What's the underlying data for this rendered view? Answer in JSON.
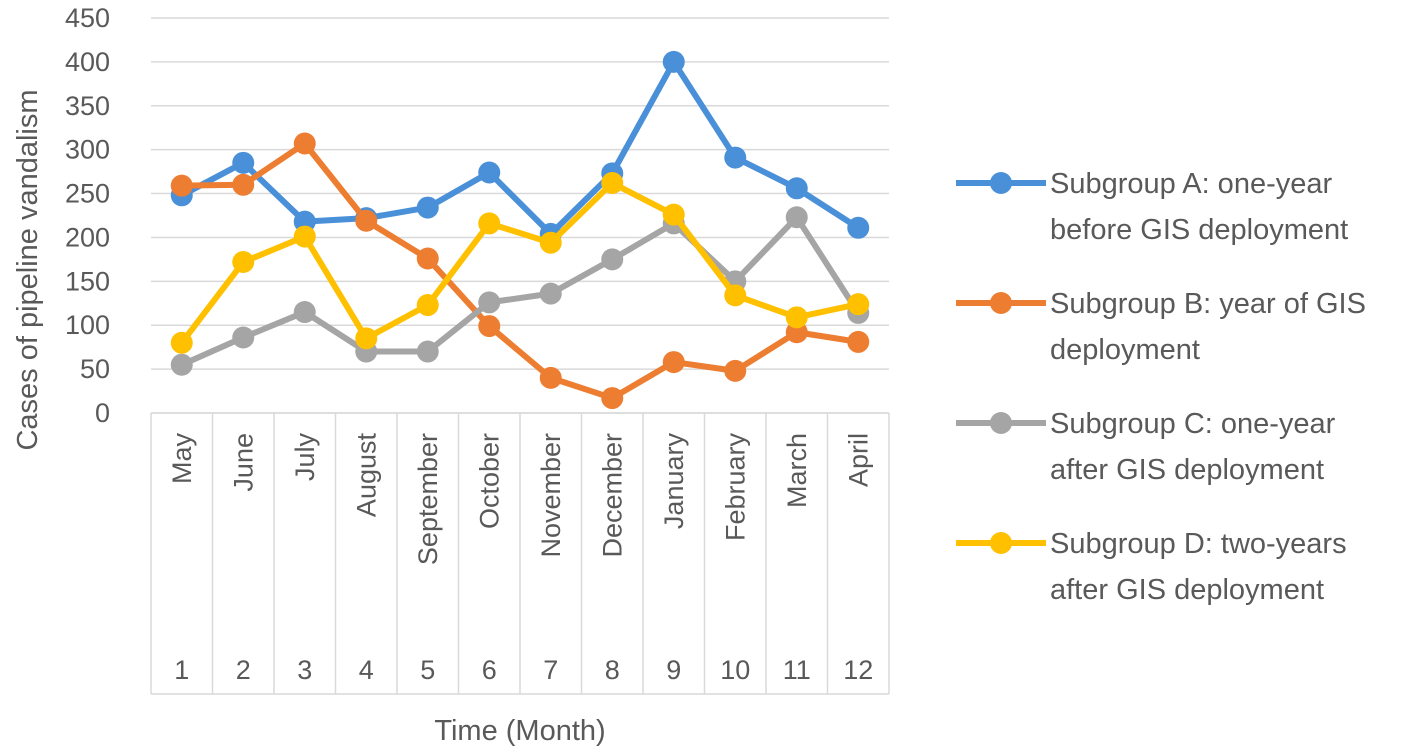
{
  "chart_data": {
    "type": "line",
    "title": "",
    "xlabel": "Time (Month)",
    "ylabel": "Cases of pipeline vandalism",
    "ylim": [
      0,
      450
    ],
    "yticks": [
      0,
      50,
      100,
      150,
      200,
      250,
      300,
      350,
      400,
      450
    ],
    "grid": true,
    "legend_position": "right",
    "categories": [
      "May",
      "June",
      "July",
      "August",
      "September",
      "October",
      "November",
      "December",
      "January",
      "February",
      "March",
      "April"
    ],
    "x": [
      "1",
      "2",
      "3",
      "4",
      "5",
      "6",
      "7",
      "8",
      "9",
      "10",
      "11",
      "12"
    ],
    "series": [
      {
        "name": "Subgroup A: one-year before GIS deployment",
        "legend_lines": [
          "Subgroup A: one-year",
          "before GIS deployment"
        ],
        "color": "#4A90D9",
        "values": [
          248,
          285,
          218,
          222,
          234,
          274,
          204,
          273,
          400,
          291,
          256,
          211
        ]
      },
      {
        "name": "Subgroup B: year of GIS deployment",
        "legend_lines": [
          "Subgroup B: year of GIS",
          "deployment"
        ],
        "color": "#ED7D31",
        "values": [
          259,
          260,
          307,
          219,
          176,
          99,
          40,
          17,
          58,
          48,
          92,
          81
        ]
      },
      {
        "name": "Subgroup C: one-year after GIS deployment",
        "legend_lines": [
          "Subgroup C: one-year",
          "after GIS deployment"
        ],
        "color": "#A5A5A5",
        "values": [
          55,
          86,
          115,
          70,
          70,
          126,
          136,
          175,
          216,
          150,
          223,
          114
        ]
      },
      {
        "name": "Subgroup D: two-years after GIS deployment",
        "legend_lines": [
          "Subgroup D: two-years",
          "after GIS deployment"
        ],
        "color": "#FFC000",
        "values": [
          80,
          172,
          201,
          85,
          123,
          216,
          194,
          262,
          226,
          134,
          109,
          124
        ]
      }
    ]
  }
}
